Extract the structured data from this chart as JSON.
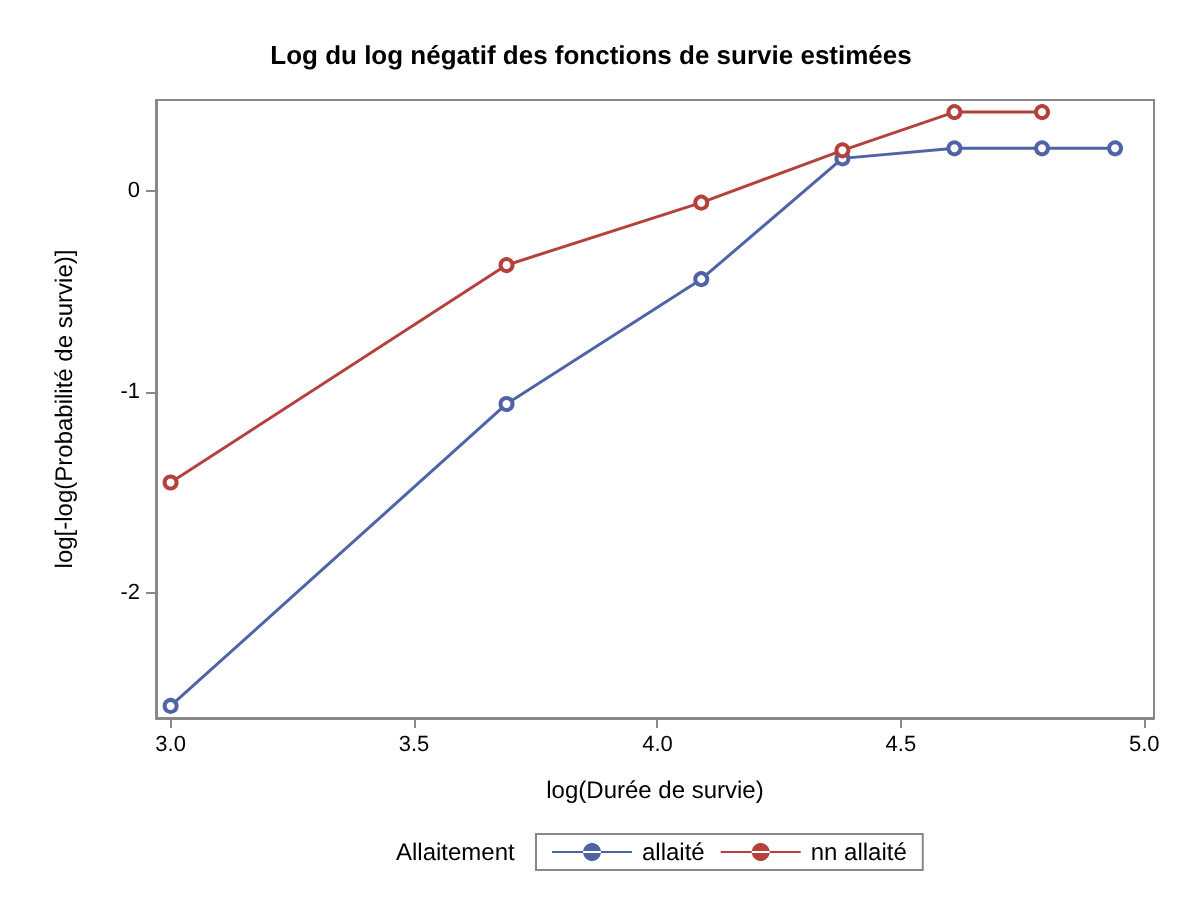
{
  "chart_data": {
    "type": "line",
    "title": "Log du log négatif des fonctions de survie estimées",
    "xlabel": "log(Durée de survie)",
    "ylabel": "log[-log(Probabilité de survie)]",
    "legend_title": "Allaitement",
    "legend": "bottom",
    "marker": "circle",
    "line_style": "solid",
    "grid": false,
    "xlim": [
      2.97,
      5.02
    ],
    "xticks": [
      {
        "value": 3,
        "label": "3.0"
      },
      3.5,
      {
        "value": 4,
        "label": "4.0"
      },
      4.5,
      {
        "value": 5,
        "label": "5.0"
      }
    ],
    "ylim": [
      -2.62,
      0.45
    ],
    "yticks": [
      -2,
      -1,
      0
    ],
    "series": [
      {
        "name": "allaité",
        "color": "#4f63a6",
        "x": [
          3.0,
          3.69,
          4.09,
          4.38,
          4.61,
          4.79,
          4.94
        ],
        "values": [
          -2.56,
          -1.06,
          -0.44,
          0.16,
          0.21,
          0.21,
          0.21
        ]
      },
      {
        "name": "nn allaité",
        "color": "#b5413d",
        "x": [
          3.0,
          3.69,
          4.09,
          4.38,
          4.61,
          4.79
        ],
        "values": [
          -1.45,
          -0.37,
          -0.06,
          0.2,
          0.39,
          0.39
        ]
      }
    ]
  }
}
